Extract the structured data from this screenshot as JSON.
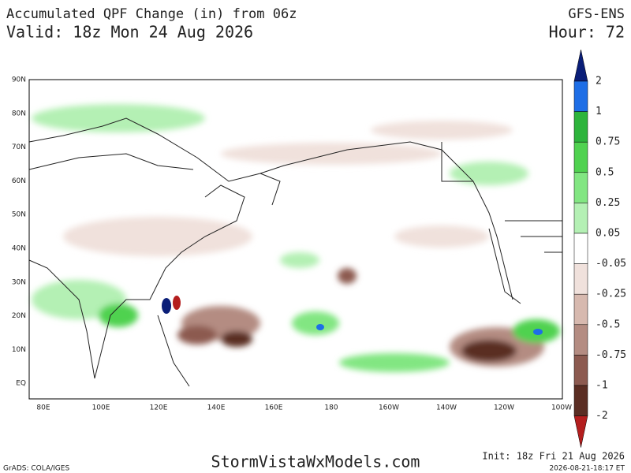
{
  "header": {
    "title": "Accumulated QPF Change (in) from 06z",
    "valid": "Valid: 18z Mon 24 Aug 2026",
    "model": "GFS-ENS",
    "hour": "Hour: 72"
  },
  "map": {
    "lat_labels": [
      "90N",
      "80N",
      "70N",
      "60N",
      "50N",
      "40N",
      "30N",
      "20N",
      "10N",
      "EQ"
    ],
    "lon_labels": [
      "80E",
      "100E",
      "120E",
      "140E",
      "160E",
      "180",
      "160W",
      "140W",
      "120W",
      "100W"
    ]
  },
  "colorbar": {
    "labels": [
      "2",
      "1",
      "0.75",
      "0.5",
      "0.25",
      "0.05",
      "-0.05",
      "-0.25",
      "-0.5",
      "-0.75",
      "-1",
      "-2"
    ],
    "colors": [
      "#0a1e78",
      "#1e6ee6",
      "#2db43c",
      "#50d250",
      "#82e682",
      "#b4f0b4",
      "#ffffff",
      "#f0e1dc",
      "#d7b9af",
      "#b48c82",
      "#8c5a50",
      "#5a2d23",
      "#b41e1e"
    ]
  },
  "footer": {
    "credit": "GrADS: COLA/IGES",
    "site": "StormVistaWxModels.com",
    "init": "Init: 18z Fri 21 Aug 2026",
    "timestamp": "2026-08-21-18:17 ET"
  }
}
